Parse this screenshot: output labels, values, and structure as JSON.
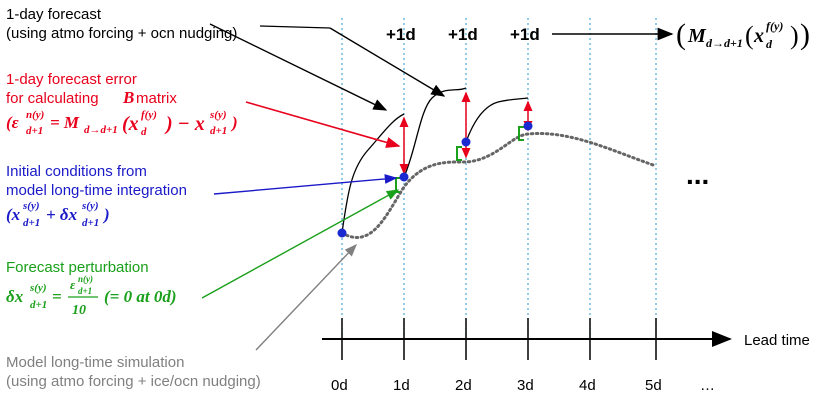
{
  "colors": {
    "black": "#000000",
    "red": "#e8001c",
    "blue": "#1a1ac8",
    "green": "#1aa01a",
    "gray": "#808080",
    "cyan_grid": "#4aa8d8",
    "dot_blue": "#1a2ad0",
    "simulation_dots": "#666666"
  },
  "labels": {
    "forecast_title": "1-day forecast",
    "forecast_sub": "(using atmo forcing + ocn nudging)",
    "error_line1": "1-day forecast error",
    "error_line2_prefix": "for calculating ",
    "error_line2_B": "B",
    "error_line2_suffix": " matrix",
    "error_formula": "(ε",
    "initial_line1": "Initial conditions from",
    "initial_line2": "model long-time integration",
    "initial_formula": "(x",
    "perturb_title": "Forecast perturbation",
    "perturb_formula": "δx",
    "perturb_tail": "(= 0 at 0d)",
    "perturb_denom": "10",
    "sim_line1": "Model long-time simulation",
    "sim_line2": "(using atmo forcing + ice/ocn nudging)",
    "lead_time": "Lead time",
    "ellipsis_plot": "...",
    "ellipsis_axis": "…"
  },
  "step_labels": [
    "+1d",
    "+1d",
    "+1d"
  ],
  "model_operator": "M",
  "ticks": [
    "0d",
    "1d",
    "2d",
    "3d",
    "4d",
    "5d"
  ]
}
